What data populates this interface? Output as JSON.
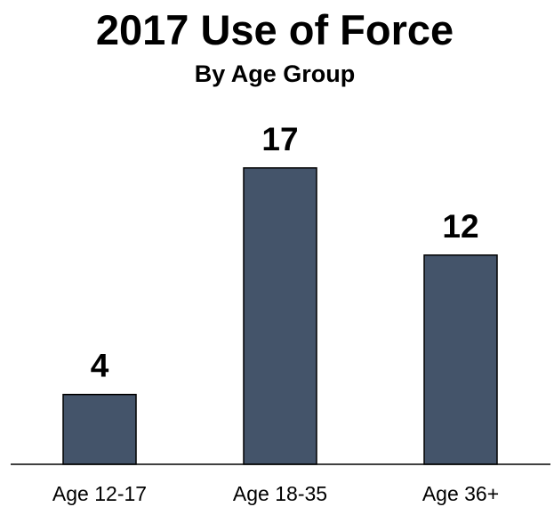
{
  "chart_data": {
    "type": "bar",
    "title": "2017 Use of Force",
    "subtitle": "By Age Group",
    "categories": [
      "Age 12-17",
      "Age 18-35",
      "Age 36+"
    ],
    "values": [
      4,
      17,
      12
    ],
    "ylim": [
      0,
      18
    ],
    "grid": false,
    "legend": "none",
    "bar_color": "#44546a"
  }
}
